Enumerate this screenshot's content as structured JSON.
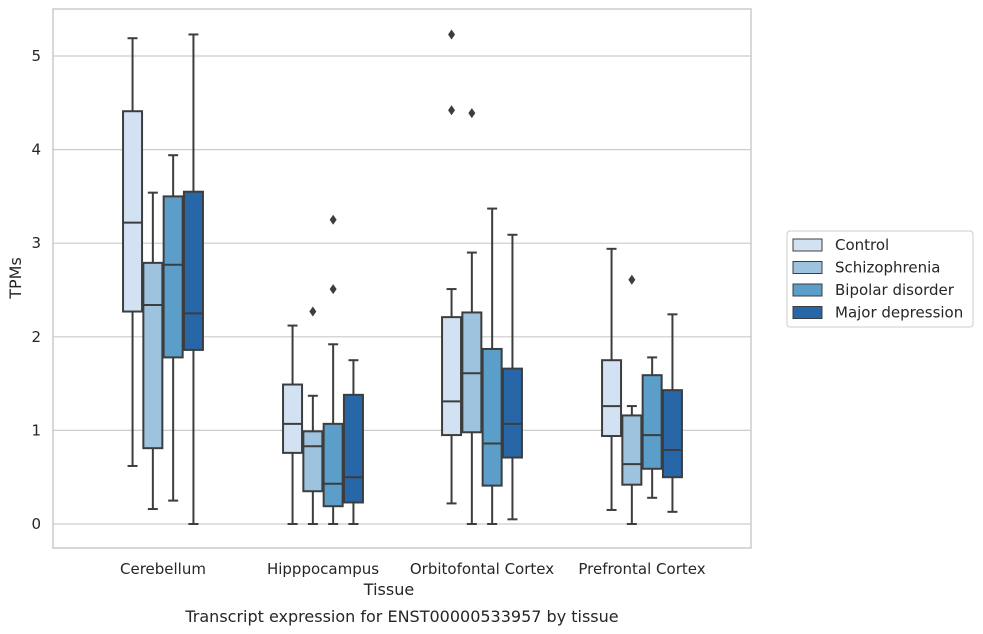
{
  "chart_data": {
    "type": "box",
    "title": "",
    "caption": "Transcript expression for ENST00000533957 by tissue",
    "xlabel": "Tissue",
    "ylabel": "TPMs",
    "ylim": [
      -0.25,
      5.5
    ],
    "yticks": [
      0,
      1,
      2,
      3,
      4,
      5
    ],
    "grid": "horizontal",
    "legend_position": "right",
    "categories": [
      "Cerebellum",
      "Hipppocampus",
      "Orbitofontal Cortex",
      "Prefrontal Cortex"
    ],
    "series": [
      {
        "name": "Control",
        "color": "#d2e2f3",
        "boxes": [
          {
            "min": 0.62,
            "q1": 2.27,
            "median": 3.22,
            "q3": 4.41,
            "max": 5.19,
            "outliers": []
          },
          {
            "min": 0.0,
            "q1": 0.76,
            "median": 1.07,
            "q3": 1.49,
            "max": 2.12,
            "outliers": []
          },
          {
            "min": 0.22,
            "q1": 0.95,
            "median": 1.31,
            "q3": 2.21,
            "max": 2.51,
            "outliers": [
              4.42,
              5.23
            ]
          },
          {
            "min": 0.15,
            "q1": 0.94,
            "median": 1.26,
            "q3": 1.75,
            "max": 2.94,
            "outliers": []
          }
        ]
      },
      {
        "name": "Schizophrenia",
        "color": "#9dc3de",
        "boxes": [
          {
            "min": 0.16,
            "q1": 0.81,
            "median": 2.34,
            "q3": 2.79,
            "max": 3.54,
            "outliers": []
          },
          {
            "min": 0.0,
            "q1": 0.35,
            "median": 0.83,
            "q3": 0.99,
            "max": 1.37,
            "outliers": [
              2.27
            ]
          },
          {
            "min": 0.0,
            "q1": 0.98,
            "median": 1.61,
            "q3": 2.26,
            "max": 2.9,
            "outliers": [
              4.39
            ]
          },
          {
            "min": 0.0,
            "q1": 0.42,
            "median": 0.64,
            "q3": 1.16,
            "max": 1.26,
            "outliers": [
              2.61
            ]
          }
        ]
      },
      {
        "name": "Bipolar disorder",
        "color": "#5b9ec9",
        "boxes": [
          {
            "min": 0.25,
            "q1": 1.78,
            "median": 2.77,
            "q3": 3.5,
            "max": 3.94,
            "outliers": []
          },
          {
            "min": 0.0,
            "q1": 0.19,
            "median": 0.43,
            "q3": 1.07,
            "max": 1.92,
            "outliers": [
              2.51,
              3.25
            ]
          },
          {
            "min": 0.0,
            "q1": 0.41,
            "median": 0.86,
            "q3": 1.87,
            "max": 3.37,
            "outliers": []
          },
          {
            "min": 0.28,
            "q1": 0.59,
            "median": 0.95,
            "q3": 1.59,
            "max": 1.78,
            "outliers": []
          }
        ]
      },
      {
        "name": "Major depression",
        "color": "#2767a7",
        "boxes": [
          {
            "min": 0.0,
            "q1": 1.86,
            "median": 2.25,
            "q3": 3.55,
            "max": 5.23,
            "outliers": []
          },
          {
            "min": 0.0,
            "q1": 0.23,
            "median": 0.5,
            "q3": 1.38,
            "max": 1.75,
            "outliers": []
          },
          {
            "min": 0.05,
            "q1": 0.71,
            "median": 1.07,
            "q3": 1.66,
            "max": 3.09,
            "outliers": []
          },
          {
            "min": 0.13,
            "q1": 0.5,
            "median": 0.79,
            "q3": 1.43,
            "max": 2.24,
            "outliers": []
          }
        ]
      }
    ]
  }
}
